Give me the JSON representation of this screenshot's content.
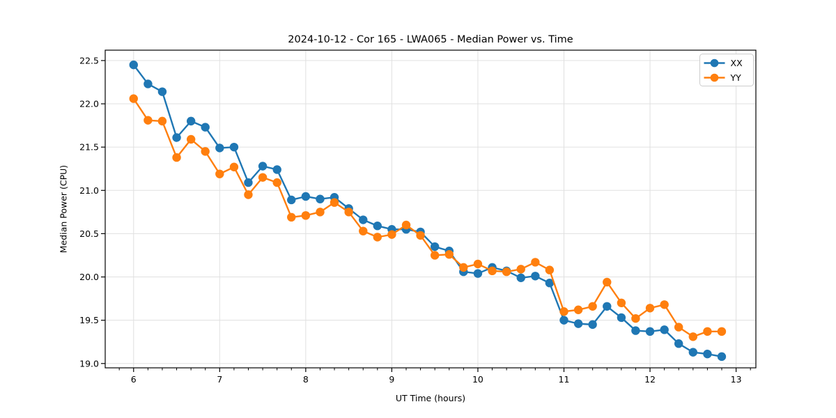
{
  "chart_data": {
    "type": "line",
    "title": "2024-10-12 - Cor 165 - LWA065 - Median Power vs. Time",
    "xlabel": "UT Time (hours)",
    "ylabel": "Median Power (CPU)",
    "xlim": [
      5.67,
      13.23
    ],
    "ylim": [
      18.95,
      22.62
    ],
    "x_ticks": [
      6,
      7,
      8,
      9,
      10,
      11,
      12,
      13
    ],
    "y_ticks": [
      19.0,
      19.5,
      20.0,
      20.5,
      21.0,
      21.5,
      22.0,
      22.5
    ],
    "x_minor_ticks_per_hour": 6,
    "grid": true,
    "legend_position": "upper right",
    "marker": "o",
    "x": [
      6.0,
      6.167,
      6.333,
      6.5,
      6.667,
      6.833,
      7.0,
      7.167,
      7.333,
      7.5,
      7.667,
      7.833,
      8.0,
      8.167,
      8.333,
      8.5,
      8.667,
      8.833,
      9.0,
      9.167,
      9.333,
      9.5,
      9.667,
      9.833,
      10.0,
      10.167,
      10.333,
      10.5,
      10.667,
      10.833,
      11.0,
      11.167,
      11.333,
      11.5,
      11.667,
      11.833,
      12.0,
      12.167,
      12.333,
      12.5,
      12.667,
      12.833
    ],
    "series": [
      {
        "name": "XX",
        "color": "#1f77b4",
        "values": [
          22.45,
          22.23,
          22.14,
          21.61,
          21.8,
          21.73,
          21.49,
          21.5,
          21.09,
          21.28,
          21.24,
          20.89,
          20.93,
          20.9,
          20.92,
          20.79,
          20.66,
          20.59,
          20.55,
          20.55,
          20.52,
          20.35,
          20.3,
          20.06,
          20.04,
          20.11,
          20.07,
          19.99,
          20.01,
          19.93,
          19.5,
          19.46,
          19.45,
          19.66,
          19.53,
          19.38,
          19.37,
          19.39,
          19.23,
          19.13,
          19.11,
          19.08
        ]
      },
      {
        "name": "YY",
        "color": "#ff7f0e",
        "values": [
          22.06,
          21.81,
          21.8,
          21.38,
          21.59,
          21.45,
          21.19,
          21.27,
          20.95,
          21.15,
          21.09,
          20.69,
          20.71,
          20.75,
          20.86,
          20.75,
          20.53,
          20.46,
          20.49,
          20.6,
          20.48,
          20.25,
          20.26,
          20.11,
          20.15,
          20.07,
          20.06,
          20.09,
          20.17,
          20.08,
          19.6,
          19.62,
          19.66,
          19.94,
          19.7,
          19.52,
          19.64,
          19.68,
          19.42,
          19.31,
          19.37,
          19.37
        ]
      }
    ],
    "style": {
      "grid_color": "#e0e0e0",
      "spine_color": "#000000",
      "background": "#ffffff"
    }
  }
}
